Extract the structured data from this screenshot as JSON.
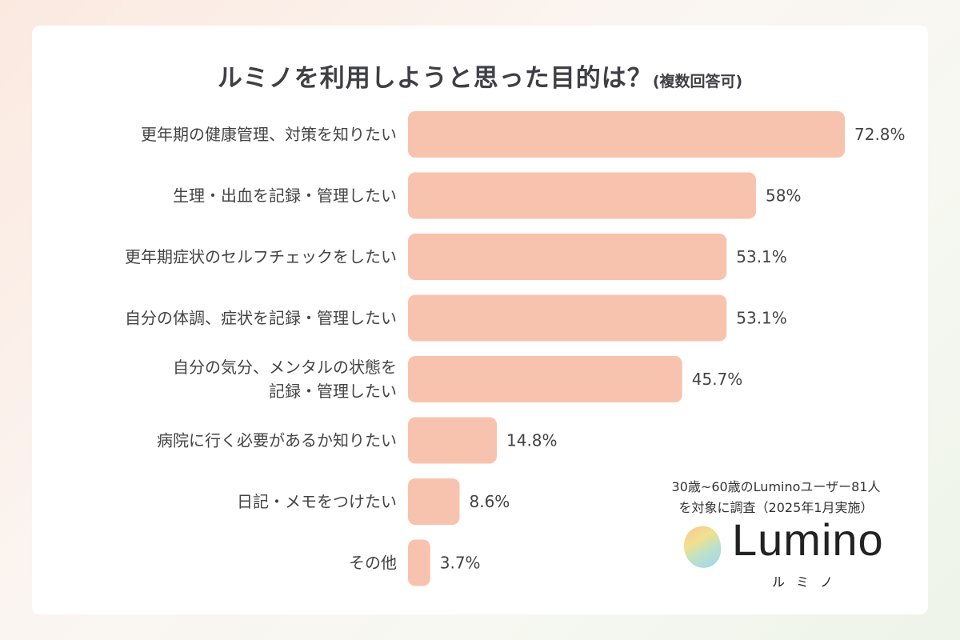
{
  "chart_data": {
    "type": "bar",
    "orientation": "horizontal",
    "title": "ルミノを利用しようと思った目的は？",
    "subtitle": "(複数回答可)",
    "categories": [
      [
        "更年期の健康管理、対策を知りたい"
      ],
      [
        "生理・出血を記録・管理したい"
      ],
      [
        "更年期症状のセルフチェックをしたい"
      ],
      [
        "自分の体調、症状を記録・管理したい"
      ],
      [
        "自分の気分、メンタルの状態を",
        "記録・管理したい"
      ],
      [
        "病院に行く必要があるか知りたい"
      ],
      [
        "日記・メモをつけたい"
      ],
      [
        "その他"
      ]
    ],
    "values": [
      72.8,
      58,
      53.1,
      53.1,
      45.7,
      14.8,
      8.6,
      3.7
    ],
    "value_labels": [
      "72.8%",
      "58%",
      "53.1%",
      "53.1%",
      "45.7%",
      "14.8%",
      "8.6%",
      "3.7%"
    ],
    "unit": "%",
    "bar_color": "#f8c3ae",
    "grid": false
  },
  "note": [
    "30歳~60歳のLuminoユーザー81人",
    "を対象に調査（2025年1月実施）"
  ],
  "logo": {
    "word": "Lumino",
    "kana": "ルミノ"
  }
}
